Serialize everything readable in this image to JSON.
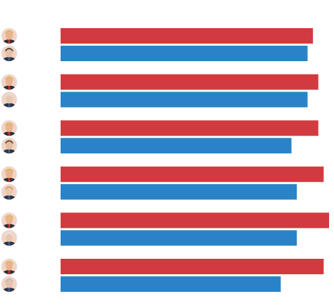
{
  "chart_data": {
    "type": "bar",
    "orientation": "horizontal",
    "categories": [
      "",
      "",
      "",
      "",
      "",
      ""
    ],
    "series": [
      {
        "color": "#d13b40",
        "avatar": "trump-portrait",
        "values": [
          94,
          96,
          96,
          98,
          100,
          98
        ]
      },
      {
        "color": "#2a83c6",
        "avatars": [
          "buttigieg-portrait",
          "biden-portrait",
          "klobuchar-portrait",
          "warren-portrait",
          "sanders-portrait",
          "bloomberg-portrait"
        ],
        "values": [
          92,
          92,
          86,
          88,
          88,
          82
        ]
      }
    ],
    "xlim": [
      0,
      100
    ],
    "grid": false,
    "legend": "none",
    "title": "",
    "xlabel": "",
    "ylabel": ""
  }
}
